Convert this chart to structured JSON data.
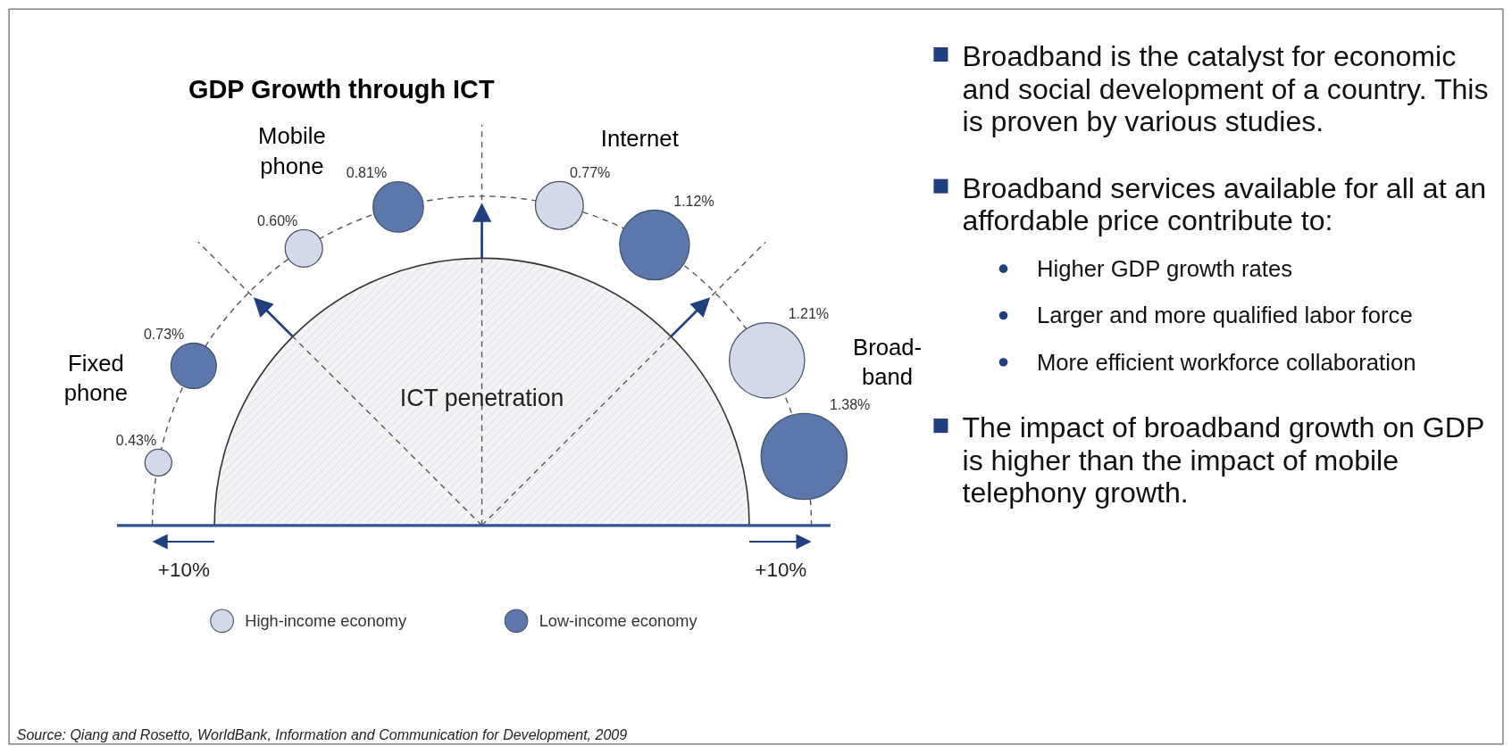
{
  "chart_data": [
    {
      "type": "other",
      "title": "GDP Growth through ICT",
      "categories": [
        "Fixed\nphone",
        "Mobile\nphone",
        "Internet",
        "Broad-\nband"
      ],
      "series": [
        {
          "name": "High-income economy",
          "color": "#d3d9e8",
          "values": [
            0.43,
            0.6,
            0.77,
            1.21
          ],
          "value_labels": [
            "0.43%",
            "0.60%",
            "0.77%",
            "1.21%"
          ]
        },
        {
          "name": "Low-income economy",
          "color": "#5b77ab",
          "values": [
            0.73,
            0.81,
            1.12,
            1.38
          ],
          "value_labels": [
            "0.73%",
            "0.81%",
            "1.12%",
            "1.38%"
          ]
        }
      ],
      "legend": "bottom",
      "annotations": [
        "ICT penetration",
        "+10%",
        "+10%",
        "Source: Qiang and Rosetto, WorldBank, Information and Communication for Development, 2009"
      ]
    },
    {
      "type": "other",
      "annotations": [
        "Broadband is the catalyst for economic and social development of a country. This is proven by various studies.",
        "Broadband services available for all at an affordable price contribute to:",
        "Higher GDP growth rates",
        "Larger and more qualified labor force",
        "More efficient workforce collaboration",
        "The impact of broadband growth on GDP is higher than the impact of mobile telephony growth."
      ]
    }
  ]
}
